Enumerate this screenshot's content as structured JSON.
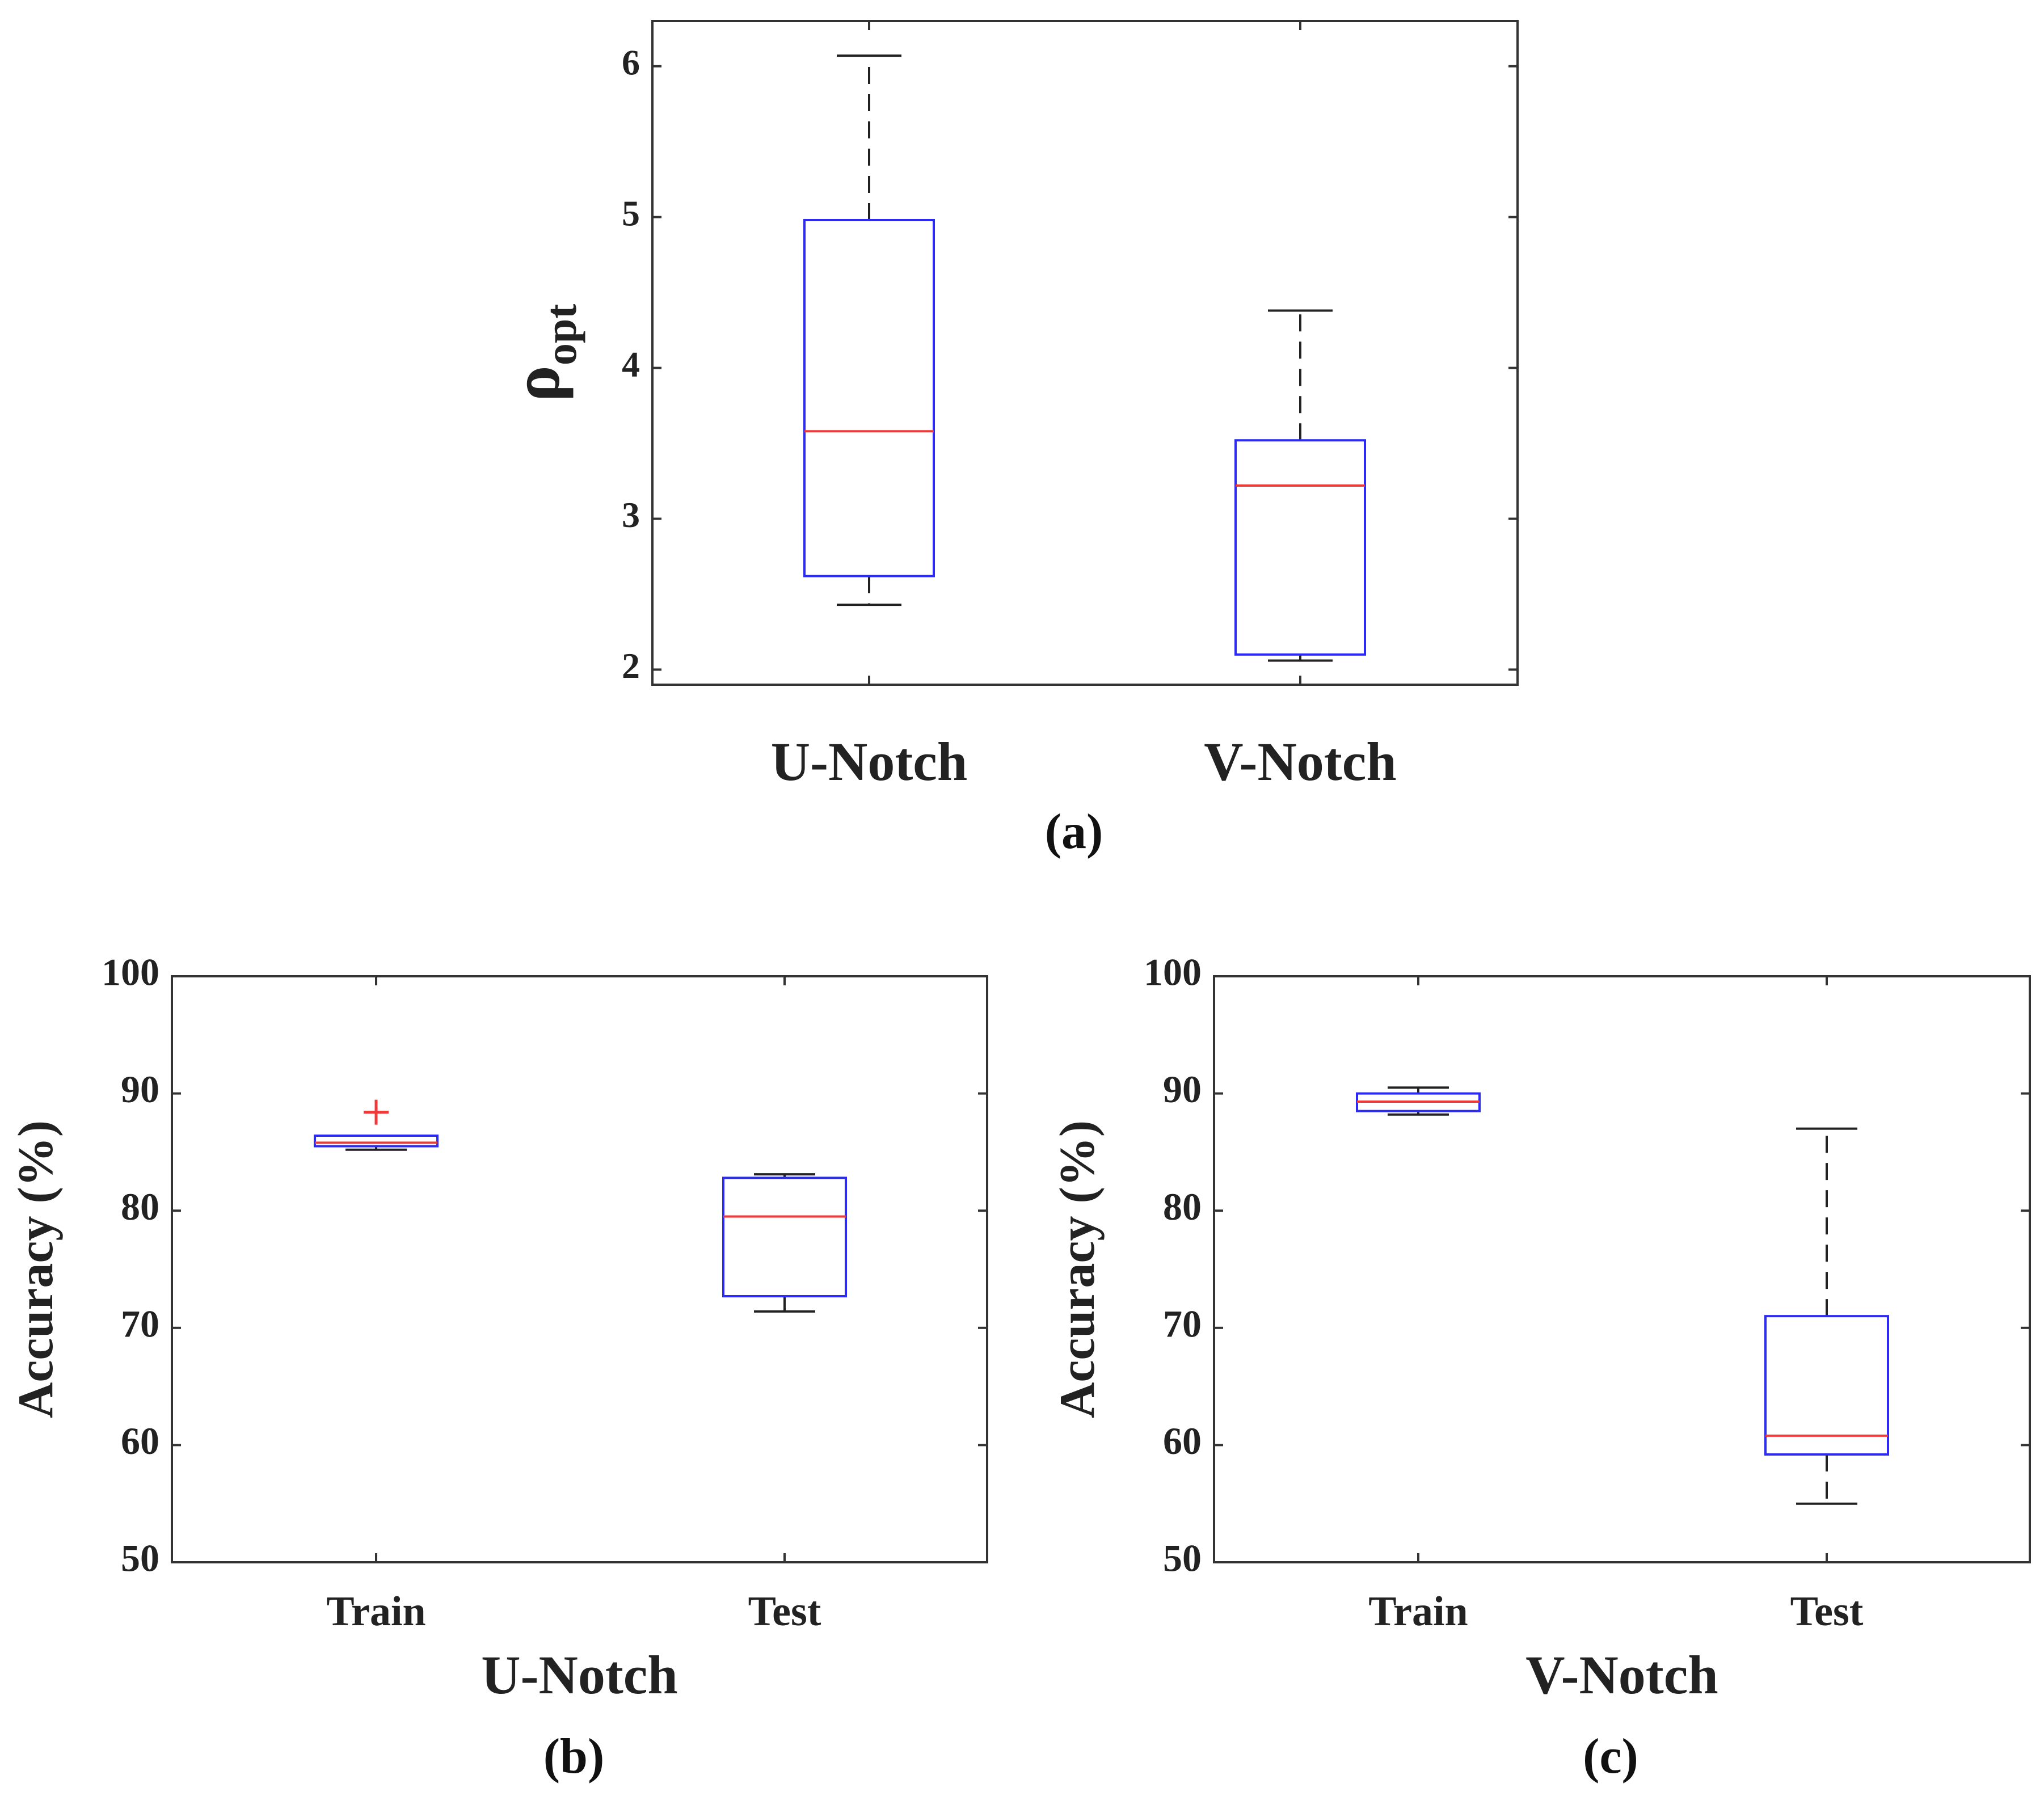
{
  "colors": {
    "box": "#2b2bf5",
    "median": "#f03a3a",
    "whisker": "#222222",
    "axes": "#333333",
    "outlier": "#f03a3a"
  },
  "chart_data": [
    {
      "id": "a",
      "type": "box",
      "caption": "(a)",
      "ylabel": "ρ",
      "ylabel_sub": "opt",
      "xlabel": "",
      "ylim": [
        1.9,
        6.3
      ],
      "yticks": [
        2,
        3,
        4,
        5,
        6
      ],
      "grid": false,
      "categories": [
        "U-Notch",
        "V-Notch"
      ],
      "boxes": [
        {
          "name": "U-Notch",
          "whisker_low": 2.43,
          "q1": 2.62,
          "median": 3.58,
          "q3": 4.98,
          "whisker_high": 6.07,
          "outliers": []
        },
        {
          "name": "V-Notch",
          "whisker_low": 2.06,
          "q1": 2.1,
          "median": 3.22,
          "q3": 3.52,
          "whisker_high": 4.38,
          "outliers": []
        }
      ]
    },
    {
      "id": "b",
      "type": "box",
      "caption": "(b)",
      "ylabel": "Accuracy (%)",
      "xlabel": "U-Notch",
      "ylim": [
        50,
        100
      ],
      "yticks": [
        50,
        60,
        70,
        80,
        90,
        100
      ],
      "grid": false,
      "categories": [
        "Train",
        "Test"
      ],
      "boxes": [
        {
          "name": "Train",
          "whisker_low": 85.2,
          "q1": 85.5,
          "median": 85.8,
          "q3": 86.4,
          "whisker_high": 86.4,
          "outliers": [
            88.4
          ]
        },
        {
          "name": "Test",
          "whisker_low": 71.4,
          "q1": 72.7,
          "median": 79.5,
          "q3": 82.8,
          "whisker_high": 83.1,
          "outliers": []
        }
      ]
    },
    {
      "id": "c",
      "type": "box",
      "caption": "(c)",
      "ylabel": "Accuracy (%)",
      "xlabel": "V-Notch",
      "ylim": [
        50,
        100
      ],
      "yticks": [
        50,
        60,
        70,
        80,
        90,
        100
      ],
      "grid": false,
      "categories": [
        "Train",
        "Test"
      ],
      "boxes": [
        {
          "name": "Train",
          "whisker_low": 88.2,
          "q1": 88.5,
          "median": 89.3,
          "q3": 90.0,
          "whisker_high": 90.5,
          "outliers": []
        },
        {
          "name": "Test",
          "whisker_low": 55.0,
          "q1": 59.2,
          "median": 60.8,
          "q3": 71.0,
          "whisker_high": 87.0,
          "outliers": []
        }
      ]
    }
  ]
}
